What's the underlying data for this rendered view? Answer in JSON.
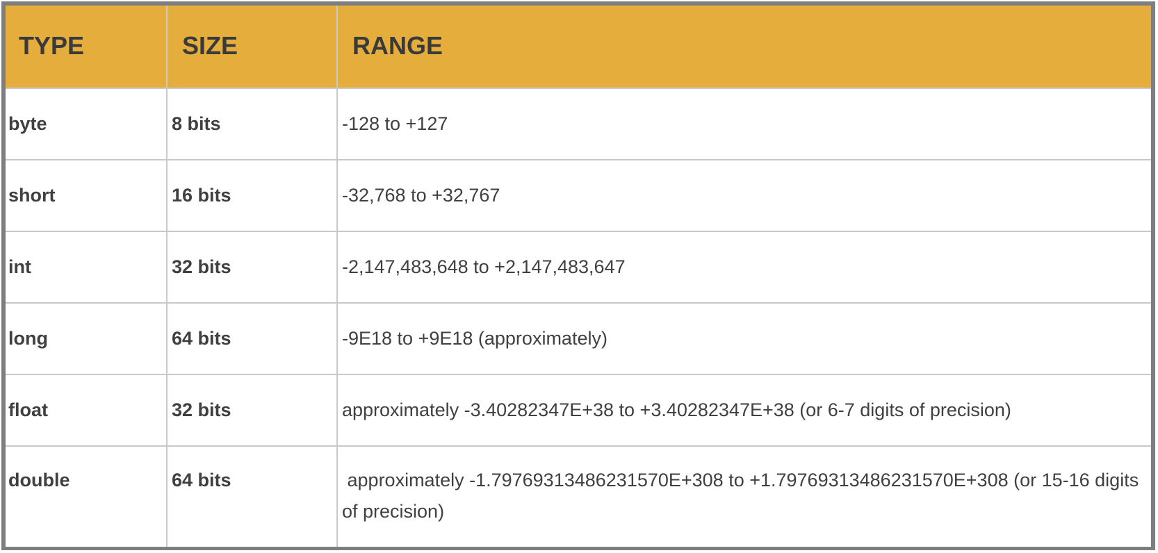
{
  "table": {
    "headers": [
      "TYPE",
      "SIZE",
      "RANGE"
    ],
    "rows": [
      {
        "type": "byte",
        "size": "8 bits",
        "range": "-128 to +127"
      },
      {
        "type": "short",
        "size": "16 bits",
        "range": "-32,768 to +32,767"
      },
      {
        "type": "int",
        "size": "32 bits",
        "range": "-2,147,483,648 to +2,147,483,647"
      },
      {
        "type": "long",
        "size": "64 bits",
        "range": "-9E18 to +9E18 (approximately)"
      },
      {
        "type": "float",
        "size": "32 bits",
        "range": "approximately -3.40282347E+38 to +3.40282347E+38 (or 6-7 digits of precision)"
      },
      {
        "type": "double",
        "size": "64 bits",
        "range": " approximately -1.79769313486231570E+308 to +1.79769313486231570E+308 (or 15-16 digits of precision)"
      }
    ]
  },
  "colors": {
    "header_background": "#e4ad3c",
    "border": "#7f7f7f",
    "grid": "#c9c9c9",
    "text": "#404040"
  }
}
